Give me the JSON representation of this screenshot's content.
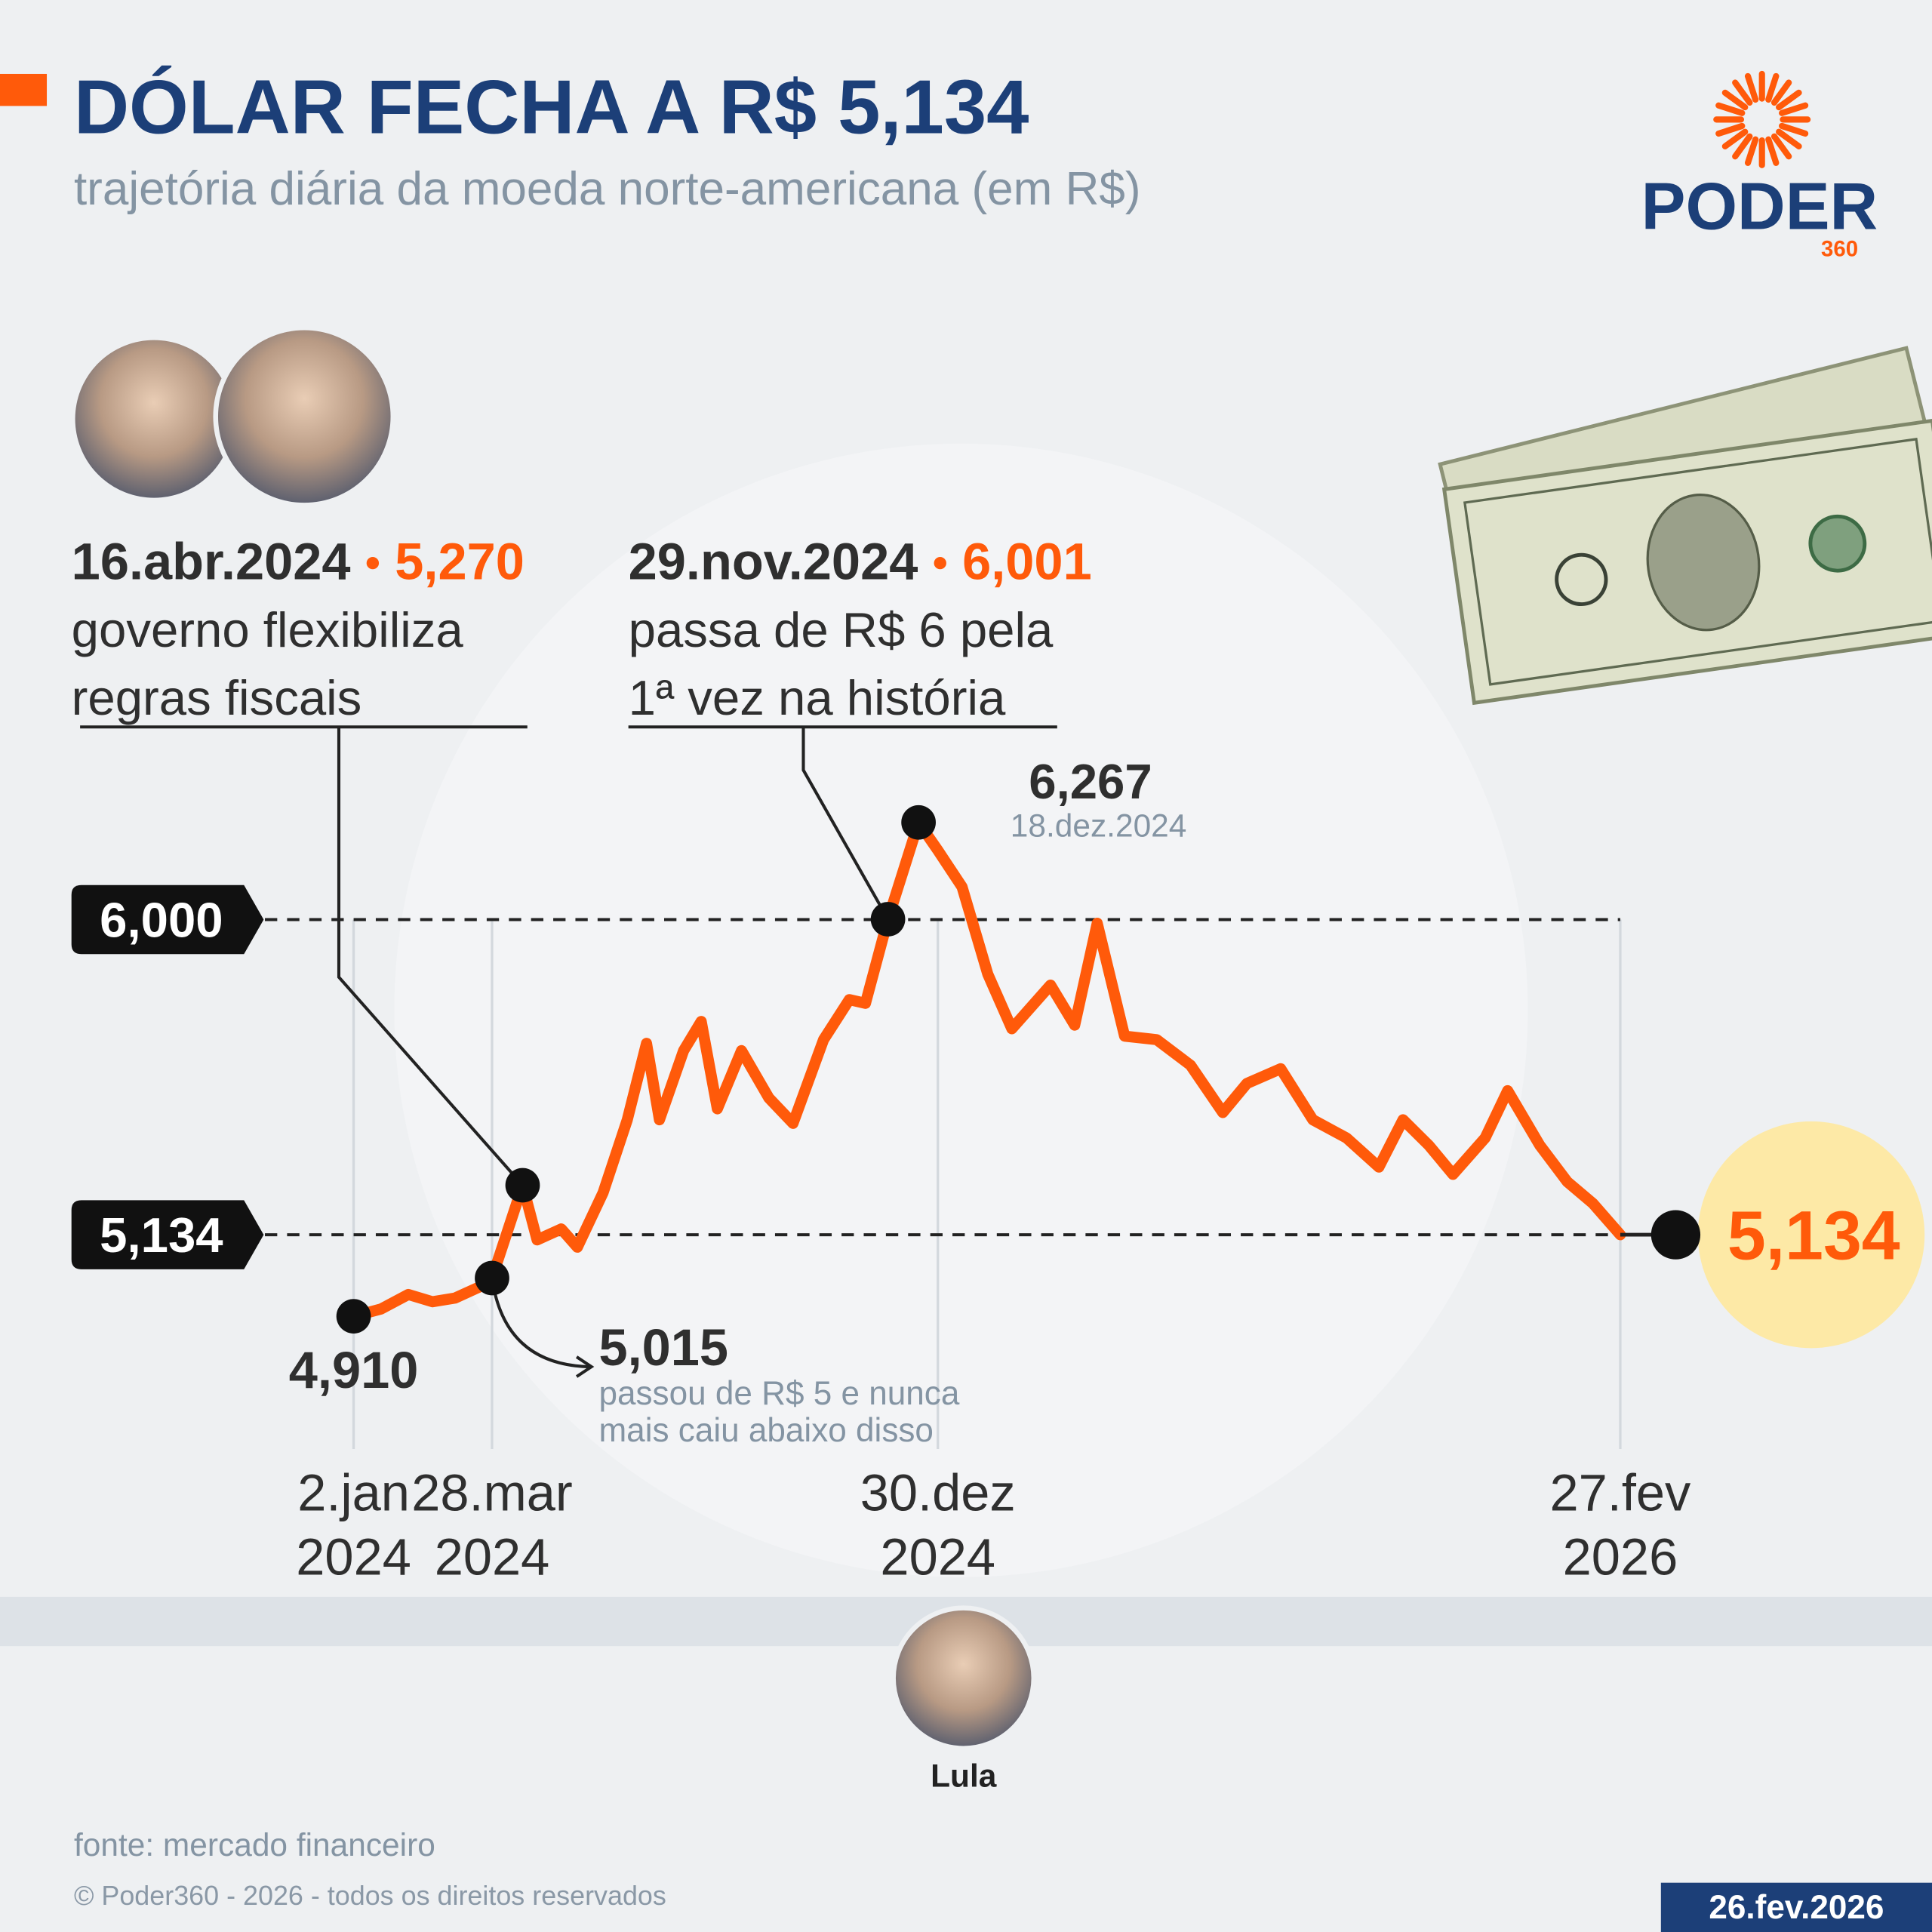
{
  "header": {
    "title": "DÓLAR FECHA A R$ 5,134",
    "subtitle": "trajetória diária da moeda norte-americana (em R$)"
  },
  "logo": {
    "name": "PODER",
    "number": "360"
  },
  "chart_data": {
    "type": "line",
    "color": "#ff5a0a",
    "x": [
      "2024-01-02",
      "2024-01-19",
      "2024-02-05",
      "2024-02-20",
      "2024-03-05",
      "2024-03-20",
      "2024-03-28",
      "2024-04-16",
      "2024-04-25",
      "2024-05-10",
      "2024-05-20",
      "2024-06-05",
      "2024-06-20",
      "2024-07-02",
      "2024-07-10",
      "2024-07-25",
      "2024-08-05",
      "2024-08-15",
      "2024-08-30",
      "2024-09-16",
      "2024-10-01",
      "2024-10-20",
      "2024-11-05",
      "2024-11-15",
      "2024-11-29",
      "2024-12-18",
      "2024-12-30",
      "2025-01-14",
      "2025-01-30",
      "2025-02-14",
      "2025-03-10",
      "2025-03-25",
      "2025-04-08",
      "2025-04-25",
      "2025-05-15",
      "2025-06-05",
      "2025-06-25",
      "2025-07-10",
      "2025-07-31",
      "2025-08-20",
      "2025-09-10",
      "2025-09-30",
      "2025-10-15",
      "2025-10-31",
      "2025-11-15",
      "2025-12-05",
      "2025-12-19",
      "2026-01-08",
      "2026-01-25",
      "2026-02-10",
      "2026-02-27"
    ],
    "values": [
      4.91,
      4.93,
      4.97,
      4.95,
      4.96,
      4.99,
      5.015,
      5.27,
      5.12,
      5.15,
      5.1,
      5.25,
      5.45,
      5.66,
      5.45,
      5.64,
      5.72,
      5.48,
      5.64,
      5.51,
      5.44,
      5.67,
      5.78,
      5.77,
      6.001,
      6.267,
      6.19,
      6.09,
      5.85,
      5.7,
      5.82,
      5.71,
      5.99,
      5.68,
      5.67,
      5.6,
      5.47,
      5.55,
      5.59,
      5.45,
      5.4,
      5.32,
      5.45,
      5.38,
      5.3,
      5.4,
      5.53,
      5.38,
      5.28,
      5.22,
      5.134
    ],
    "xlim": [
      "2024-01-02",
      "2026-02-27"
    ],
    "xticks": [
      {
        "value": "2024-01-02",
        "label": "2.jan\n2024"
      },
      {
        "value": "2024-03-28",
        "label": "28.mar\n2024"
      },
      {
        "value": "2024-12-30",
        "label": "30.dez\n2024"
      },
      {
        "value": "2026-02-27",
        "label": "27.fev\n2026"
      }
    ],
    "ylim": [
      4.7,
      6.4
    ],
    "reference_lines": [
      {
        "value": 6,
        "label": "6,000"
      },
      {
        "value": 5.134,
        "label": "5,134"
      }
    ],
    "annotations": [
      {
        "x": "2024-01-02",
        "value": 4.91,
        "label": "4,910"
      },
      {
        "x": "2024-03-28",
        "value": 5.015,
        "label": "5,015",
        "note": [
          "passou de R$ 5 e nunca",
          "mais caiu abaixo disso"
        ]
      },
      {
        "x": "2024-04-16",
        "value": 5.27,
        "label": "5,270",
        "date": "16.abr.2024",
        "text": [
          "governo flexibiliza",
          "regras fiscais"
        ]
      },
      {
        "x": "2024-11-29",
        "value": 6.001,
        "label": "6,001",
        "date": "29.nov.2024",
        "text": [
          "passa de R$ 6 pela",
          "1ª vez na história"
        ]
      },
      {
        "x": "2024-12-18",
        "value": 6.267,
        "label": "6,267",
        "date": "18.dez.2024"
      },
      {
        "x": "2026-02-27",
        "value": 5.134,
        "label": "5,134"
      }
    ]
  },
  "timeline": {
    "person": "Lula"
  },
  "footer": {
    "source": "fonte: mercado financeiro",
    "copyright": "© Poder360 - 2026 - todos os direitos reservados",
    "date": "26.fev.2026"
  }
}
